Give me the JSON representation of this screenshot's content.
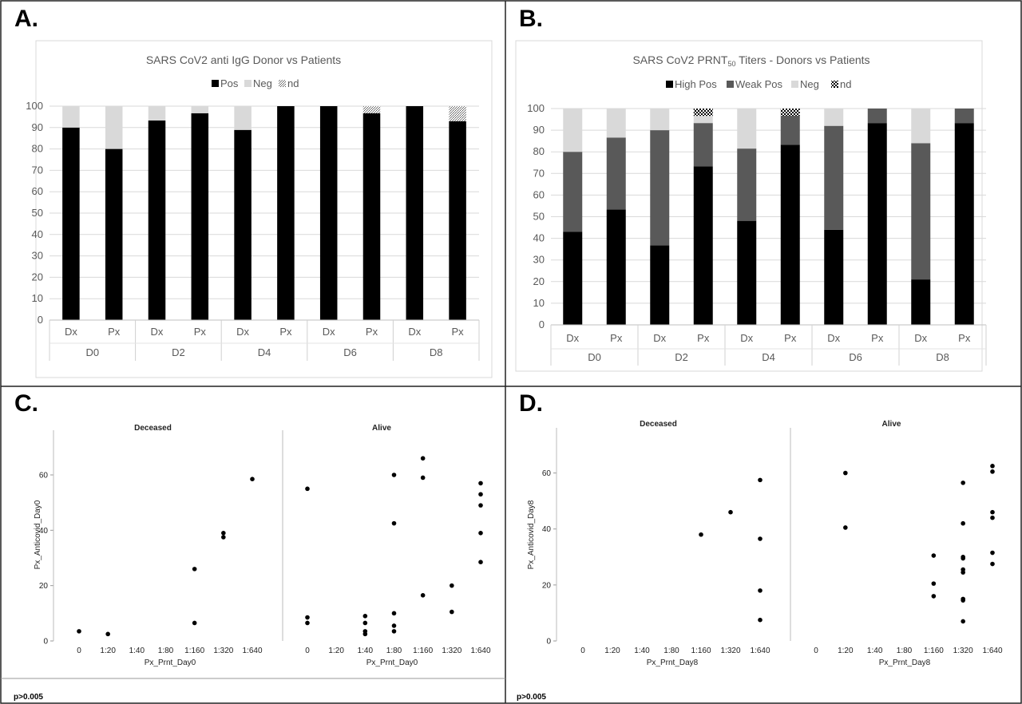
{
  "labels": {
    "a": "A.",
    "b": "B.",
    "c": "C.",
    "d": "D."
  },
  "colors": {
    "pos": "#000000",
    "neg": "#d9d9d9",
    "weak": "#595959",
    "text": "#595959"
  },
  "chart_data": [
    {
      "id": "A",
      "type": "bar",
      "stacked": true,
      "title": "SARS CoV2 anti IgG Donor vs Patients",
      "legend": [
        "Pos",
        "Neg",
        "nd"
      ],
      "legend_position": "top",
      "ylim": [
        0,
        100
      ],
      "yticks": [
        0,
        10,
        20,
        30,
        40,
        50,
        60,
        70,
        80,
        90,
        100
      ],
      "categories": [
        "Dx",
        "Px",
        "Dx",
        "Px",
        "Dx",
        "Px",
        "Dx",
        "Px",
        "Dx",
        "Px"
      ],
      "groups": [
        "D0",
        "D2",
        "D4",
        "D6",
        "D8"
      ],
      "series": [
        {
          "name": "Pos",
          "values": [
            90,
            80,
            93.3,
            96.7,
            88.9,
            100,
            100,
            96.7,
            100,
            93
          ]
        },
        {
          "name": "Neg",
          "values": [
            10,
            20,
            6.7,
            3.3,
            11.1,
            0,
            0,
            0,
            0,
            0
          ]
        },
        {
          "name": "nd",
          "values": [
            0,
            0,
            0,
            0,
            0,
            0,
            0,
            3.3,
            0,
            7
          ]
        }
      ]
    },
    {
      "id": "B",
      "type": "bar",
      "stacked": true,
      "title_main": "SARS CoV2 PRNT",
      "title_sub": "50",
      "title_rest": " Titers - Donors vs Patients",
      "legend": [
        "High Pos",
        "Weak Pos",
        "Neg",
        "nd"
      ],
      "legend_position": "top",
      "ylim": [
        0,
        100
      ],
      "yticks": [
        0,
        10,
        20,
        30,
        40,
        50,
        60,
        70,
        80,
        90,
        100
      ],
      "categories": [
        "Dx",
        "Px",
        "Dx",
        "Px",
        "Dx",
        "Px",
        "Dx",
        "Px",
        "Dx",
        "Px"
      ],
      "groups": [
        "D0",
        "D2",
        "D4",
        "D6",
        "D8"
      ],
      "series": [
        {
          "name": "High Pos",
          "values": [
            43,
            53.3,
            36.7,
            73.3,
            48.1,
            83.3,
            44,
            93.3,
            21,
            93.3
          ]
        },
        {
          "name": "Weak Pos",
          "values": [
            37,
            33.3,
            53.3,
            20,
            33.4,
            13.4,
            48,
            6.7,
            63,
            6.7
          ]
        },
        {
          "name": "Neg",
          "values": [
            20,
            13.4,
            10,
            3.3,
            18.5,
            0,
            8,
            0,
            16,
            0
          ]
        },
        {
          "name": "nd",
          "values": [
            0,
            0,
            0,
            3.4,
            0,
            3.3,
            0,
            0,
            0,
            0
          ]
        }
      ]
    },
    {
      "id": "C",
      "type": "scatter",
      "xlabel": "Px_Prnt_Day0",
      "ylabel": "Px_Anticovid_Day0",
      "categories": [
        "0",
        "1:20",
        "1:40",
        "1:80",
        "1:160",
        "1:320",
        "1:640"
      ],
      "yticks": [
        0,
        20,
        40,
        60
      ],
      "ylim": [
        0,
        75
      ],
      "facets": [
        {
          "name": "Deceased",
          "points": [
            [
              0,
              3.5
            ],
            [
              1,
              2.5
            ],
            [
              4,
              26
            ],
            [
              4,
              6.5
            ],
            [
              5,
              39
            ],
            [
              5,
              37.5
            ],
            [
              6,
              58.5
            ]
          ]
        },
        {
          "name": "Alive",
          "points": [
            [
              0,
              55
            ],
            [
              0,
              8.5
            ],
            [
              0,
              6.5
            ],
            [
              2,
              9
            ],
            [
              2,
              6.5
            ],
            [
              2,
              3.5
            ],
            [
              2,
              2.5
            ],
            [
              3,
              60
            ],
            [
              3,
              42.5
            ],
            [
              3,
              10
            ],
            [
              3,
              5.5
            ],
            [
              3,
              3.5
            ],
            [
              4,
              66
            ],
            [
              4,
              59
            ],
            [
              4,
              16.5
            ],
            [
              5,
              20
            ],
            [
              5,
              10.5
            ],
            [
              6,
              57
            ],
            [
              6,
              53
            ],
            [
              6,
              49
            ],
            [
              6,
              39
            ],
            [
              6,
              28.5
            ]
          ]
        }
      ],
      "note": "p>0.005"
    },
    {
      "id": "D",
      "type": "scatter",
      "xlabel": "Px_Prnt_Day8",
      "ylabel": "Px_Anticovid_Day8",
      "categories": [
        "0",
        "1:20",
        "1:40",
        "1:80",
        "1:160",
        "1:320",
        "1:640"
      ],
      "yticks": [
        0,
        20,
        40,
        60
      ],
      "ylim": [
        0,
        75
      ],
      "facets": [
        {
          "name": "Deceased",
          "points": [
            [
              4,
              38
            ],
            [
              5,
              46
            ],
            [
              6,
              57.5
            ],
            [
              6,
              36.5
            ],
            [
              6,
              18
            ],
            [
              6,
              7.5
            ]
          ]
        },
        {
          "name": "Alive",
          "points": [
            [
              1,
              60
            ],
            [
              1,
              40.5
            ],
            [
              4,
              30.5
            ],
            [
              4,
              20.5
            ],
            [
              4,
              16
            ],
            [
              5,
              56.5
            ],
            [
              5,
              42
            ],
            [
              5,
              30
            ],
            [
              5,
              29.5
            ],
            [
              5,
              25.5
            ],
            [
              5,
              24.5
            ],
            [
              5,
              15
            ],
            [
              5,
              14.5
            ],
            [
              5,
              7
            ],
            [
              6,
              62.5
            ],
            [
              6,
              60.5
            ],
            [
              6,
              46
            ],
            [
              6,
              44
            ],
            [
              6,
              31.5
            ],
            [
              6,
              27.5
            ]
          ]
        }
      ],
      "note": "p>0.005"
    }
  ]
}
